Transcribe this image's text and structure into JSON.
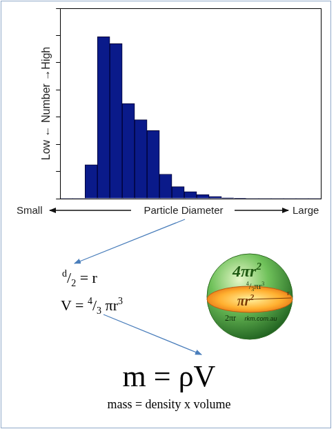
{
  "chart_data": {
    "type": "bar",
    "ylabel": "Low ← Number →High",
    "xlabel": "Particle Diameter",
    "annotations": [
      "Small",
      "Large"
    ],
    "categories": [
      null,
      null,
      null,
      null,
      null,
      null,
      null,
      null,
      null,
      null,
      null,
      null,
      null,
      null,
      null,
      null,
      null,
      null,
      null,
      null,
      null
    ],
    "values": [
      0,
      0,
      12.5,
      59.5,
      57,
      35,
      29,
      25,
      9,
      4.4,
      2.6,
      1.5,
      0.8,
      0.3,
      0.1,
      0,
      0,
      0,
      0,
      0,
      0
    ],
    "color": "#0a1a8a",
    "ylim": [
      0,
      70
    ],
    "yticks": [
      0,
      10,
      20,
      30,
      40,
      50,
      60,
      70
    ],
    "grid": false,
    "tick_labels": false
  },
  "formulas": {
    "radius": [
      {
        "t": "d",
        "sup": true
      },
      {
        "t": "/"
      },
      {
        "t": "2",
        "sub": true
      },
      {
        "t": " = r"
      }
    ],
    "volume": [
      {
        "t": "V = "
      },
      {
        "t": "4",
        "sup": true
      },
      {
        "t": "/"
      },
      {
        "t": "3",
        "sub": true
      },
      {
        "t": " πr"
      },
      {
        "t": "3",
        "sup": true
      }
    ],
    "mass": [
      {
        "t": "m = ρV"
      }
    ],
    "mass_words": "mass = density x volume"
  },
  "sphere": {
    "surface": [
      {
        "t": "4πr"
      },
      {
        "t": "2",
        "sup": true
      }
    ],
    "volume": [
      {
        "t": "4",
        "sup": true
      },
      {
        "t": "/"
      },
      {
        "t": "3",
        "sub": true
      },
      {
        "t": "πr"
      },
      {
        "t": "3",
        "sup": true
      }
    ],
    "cross_section": [
      {
        "t": "πr"
      },
      {
        "t": "2",
        "sup": true
      }
    ],
    "circumference": [
      {
        "t": "2πr"
      }
    ],
    "credit": "rkm.com.au",
    "radius": "r"
  }
}
